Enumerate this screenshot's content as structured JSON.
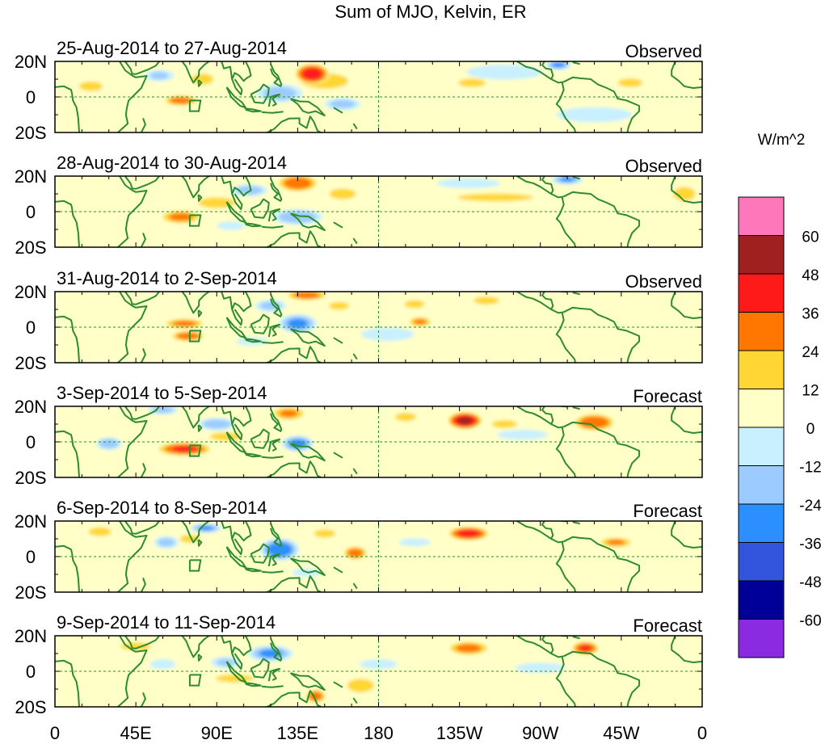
{
  "chart_data": {
    "type": "heatmap",
    "title": "Sum of MJO, Kelvin, ER",
    "units_label": "W/m^2",
    "x_ticks": [
      "0",
      "45E",
      "90E",
      "135E",
      "180",
      "135W",
      "90W",
      "45W",
      "0"
    ],
    "x_tick_lon": [
      0,
      45,
      90,
      135,
      180,
      225,
      270,
      315,
      360
    ],
    "y_ticks": [
      "20N",
      "0",
      "20S"
    ],
    "y_tick_lat": [
      20,
      0,
      -20
    ],
    "lon_range": [
      0,
      360
    ],
    "lat_range": [
      -20,
      20
    ],
    "colorbar": {
      "levels": [
        "60",
        "48",
        "36",
        "24",
        "12",
        "0",
        "-12",
        "-24",
        "-36",
        "-48",
        "-60"
      ],
      "colors": [
        "#ff77bb",
        "#a02020",
        "#ff1a1a",
        "#ff7700",
        "#ffd633",
        "#ffffc8",
        "#c8f0ff",
        "#9cccff",
        "#2b8fff",
        "#3355dd",
        "#000099",
        "#8a2be2"
      ]
    },
    "panels": [
      {
        "date_range": "25-Aug-2014 to 27-Aug-2014",
        "status": "Observed",
        "anomalies": [
          {
            "lon": 143,
            "lat": 13,
            "value": 45,
            "lon_w": 10,
            "lat_w": 6
          },
          {
            "lon": 150,
            "lat": 9,
            "value": 15,
            "lon_w": 18,
            "lat_w": 6
          },
          {
            "lon": 70,
            "lat": -2,
            "value": 30,
            "lon_w": 10,
            "lat_w": 3
          },
          {
            "lon": 82,
            "lat": 10,
            "value": 18,
            "lon_w": 8,
            "lat_w": 4
          },
          {
            "lon": 20,
            "lat": 6,
            "value": 12,
            "lon_w": 10,
            "lat_w": 4
          },
          {
            "lon": 232,
            "lat": 8,
            "value": 18,
            "lon_w": 10,
            "lat_w": 3
          },
          {
            "lon": 320,
            "lat": 8,
            "value": 18,
            "lon_w": 9,
            "lat_w": 3
          },
          {
            "lon": 58,
            "lat": 12,
            "value": -24,
            "lon_w": 10,
            "lat_w": 4
          },
          {
            "lon": 125,
            "lat": 2,
            "value": -30,
            "lon_w": 15,
            "lat_w": 6
          },
          {
            "lon": 160,
            "lat": -4,
            "value": -28,
            "lon_w": 12,
            "lat_w": 4
          },
          {
            "lon": 280,
            "lat": 18,
            "value": -38,
            "lon_w": 8,
            "lat_w": 3
          },
          {
            "lon": 250,
            "lat": 14,
            "value": -14,
            "lon_w": 30,
            "lat_w": 6
          },
          {
            "lon": 300,
            "lat": -10,
            "value": -14,
            "lon_w": 30,
            "lat_w": 6
          }
        ]
      },
      {
        "date_range": "28-Aug-2014 to 30-Aug-2014",
        "status": "Observed",
        "anomalies": [
          {
            "lon": 135,
            "lat": 16,
            "value": 32,
            "lon_w": 12,
            "lat_w": 5
          },
          {
            "lon": 90,
            "lat": 5,
            "value": 16,
            "lon_w": 14,
            "lat_w": 4
          },
          {
            "lon": 70,
            "lat": -3,
            "value": 26,
            "lon_w": 12,
            "lat_w": 4
          },
          {
            "lon": 160,
            "lat": 10,
            "value": 16,
            "lon_w": 10,
            "lat_w": 4
          },
          {
            "lon": 245,
            "lat": 8,
            "value": 14,
            "lon_w": 30,
            "lat_w": 3
          },
          {
            "lon": 350,
            "lat": 10,
            "value": 18,
            "lon_w": 8,
            "lat_w": 5
          },
          {
            "lon": 108,
            "lat": 12,
            "value": -30,
            "lon_w": 12,
            "lat_w": 4
          },
          {
            "lon": 135,
            "lat": -3,
            "value": -34,
            "lon_w": 16,
            "lat_w": 5
          },
          {
            "lon": 98,
            "lat": -8,
            "value": -20,
            "lon_w": 10,
            "lat_w": 3
          },
          {
            "lon": 285,
            "lat": 18,
            "value": -36,
            "lon_w": 10,
            "lat_w": 3
          },
          {
            "lon": 230,
            "lat": 16,
            "value": -14,
            "lon_w": 25,
            "lat_w": 4
          }
        ]
      },
      {
        "date_range": "31-Aug-2014 to 2-Sep-2014",
        "status": "Observed",
        "anomalies": [
          {
            "lon": 72,
            "lat": 2,
            "value": 26,
            "lon_w": 12,
            "lat_w": 3
          },
          {
            "lon": 74,
            "lat": -5,
            "value": 32,
            "lon_w": 10,
            "lat_w": 3
          },
          {
            "lon": 140,
            "lat": 18,
            "value": 30,
            "lon_w": 12,
            "lat_w": 3
          },
          {
            "lon": 203,
            "lat": 3,
            "value": 24,
            "lon_w": 7,
            "lat_w": 3
          },
          {
            "lon": 158,
            "lat": 12,
            "value": 14,
            "lon_w": 8,
            "lat_w": 3
          },
          {
            "lon": 200,
            "lat": 13,
            "value": 14,
            "lon_w": 8,
            "lat_w": 3
          },
          {
            "lon": 240,
            "lat": 15,
            "value": 14,
            "lon_w": 10,
            "lat_w": 3
          },
          {
            "lon": 120,
            "lat": 12,
            "value": -28,
            "lon_w": 10,
            "lat_w": 4
          },
          {
            "lon": 135,
            "lat": 2,
            "value": -38,
            "lon_w": 12,
            "lat_w": 6
          },
          {
            "lon": 185,
            "lat": -4,
            "value": -16,
            "lon_w": 20,
            "lat_w": 5
          },
          {
            "lon": 110,
            "lat": -8,
            "value": -18,
            "lon_w": 12,
            "lat_w": 3
          }
        ]
      },
      {
        "date_range": "3-Sep-2014 to 5-Sep-2014",
        "status": "Forecast",
        "anomalies": [
          {
            "lon": 228,
            "lat": 12,
            "value": 50,
            "lon_w": 10,
            "lat_w": 5
          },
          {
            "lon": 300,
            "lat": 11,
            "value": 34,
            "lon_w": 12,
            "lat_w": 5
          },
          {
            "lon": 72,
            "lat": -4,
            "value": 36,
            "lon_w": 16,
            "lat_w": 4
          },
          {
            "lon": 95,
            "lat": 3,
            "value": 16,
            "lon_w": 12,
            "lat_w": 3
          },
          {
            "lon": 130,
            "lat": 16,
            "value": 24,
            "lon_w": 10,
            "lat_w": 4
          },
          {
            "lon": 195,
            "lat": 14,
            "value": 16,
            "lon_w": 8,
            "lat_w": 3
          },
          {
            "lon": 250,
            "lat": 10,
            "value": 14,
            "lon_w": 10,
            "lat_w": 3
          },
          {
            "lon": 135,
            "lat": -1,
            "value": -40,
            "lon_w": 10,
            "lat_w": 5
          },
          {
            "lon": 90,
            "lat": 10,
            "value": -32,
            "lon_w": 12,
            "lat_w": 4
          },
          {
            "lon": 30,
            "lat": -1,
            "value": -34,
            "lon_w": 8,
            "lat_w": 4
          },
          {
            "lon": 60,
            "lat": 18,
            "value": -28,
            "lon_w": 10,
            "lat_w": 3
          },
          {
            "lon": 260,
            "lat": 4,
            "value": -14,
            "lon_w": 20,
            "lat_w": 4
          }
        ]
      },
      {
        "date_range": "6-Sep-2014 to 8-Sep-2014",
        "status": "Forecast",
        "anomalies": [
          {
            "lon": 230,
            "lat": 13,
            "value": 42,
            "lon_w": 12,
            "lat_w": 4
          },
          {
            "lon": 312,
            "lat": 8,
            "value": 24,
            "lon_w": 10,
            "lat_w": 3
          },
          {
            "lon": 167,
            "lat": 2,
            "value": 30,
            "lon_w": 7,
            "lat_w": 4
          },
          {
            "lon": 25,
            "lat": 14,
            "value": 20,
            "lon_w": 8,
            "lat_w": 3
          },
          {
            "lon": 150,
            "lat": 13,
            "value": 16,
            "lon_w": 8,
            "lat_w": 3
          },
          {
            "lon": 75,
            "lat": 10,
            "value": 14,
            "lon_w": 8,
            "lat_w": 3
          },
          {
            "lon": 125,
            "lat": 4,
            "value": -46,
            "lon_w": 12,
            "lat_w": 7
          },
          {
            "lon": 84,
            "lat": 16,
            "value": -36,
            "lon_w": 10,
            "lat_w": 3
          },
          {
            "lon": 62,
            "lat": 8,
            "value": -28,
            "lon_w": 8,
            "lat_w": 4
          },
          {
            "lon": 140,
            "lat": -9,
            "value": -22,
            "lon_w": 10,
            "lat_w": 3
          },
          {
            "lon": 200,
            "lat": 8,
            "value": -16,
            "lon_w": 12,
            "lat_w": 3
          }
        ]
      },
      {
        "date_range": "9-Sep-2014 to 11-Sep-2014",
        "status": "Forecast",
        "anomalies": [
          {
            "lon": 230,
            "lat": 13,
            "value": 28,
            "lon_w": 12,
            "lat_w": 4
          },
          {
            "lon": 295,
            "lat": 13,
            "value": 36,
            "lon_w": 8,
            "lat_w": 4
          },
          {
            "lon": 145,
            "lat": -14,
            "value": 30,
            "lon_w": 6,
            "lat_w": 4
          },
          {
            "lon": 170,
            "lat": -8,
            "value": 16,
            "lon_w": 10,
            "lat_w": 5
          },
          {
            "lon": 45,
            "lat": 14,
            "value": 14,
            "lon_w": 12,
            "lat_w": 3
          },
          {
            "lon": 100,
            "lat": -4,
            "value": 14,
            "lon_w": 15,
            "lat_w": 3
          },
          {
            "lon": 120,
            "lat": 10,
            "value": -38,
            "lon_w": 14,
            "lat_w": 5
          },
          {
            "lon": 95,
            "lat": 5,
            "value": -24,
            "lon_w": 10,
            "lat_w": 4
          },
          {
            "lon": 60,
            "lat": 4,
            "value": -14,
            "lon_w": 10,
            "lat_w": 4
          },
          {
            "lon": 180,
            "lat": 4,
            "value": -14,
            "lon_w": 15,
            "lat_w": 4
          },
          {
            "lon": 270,
            "lat": 2,
            "value": -14,
            "lon_w": 20,
            "lat_w": 4
          }
        ]
      }
    ]
  }
}
